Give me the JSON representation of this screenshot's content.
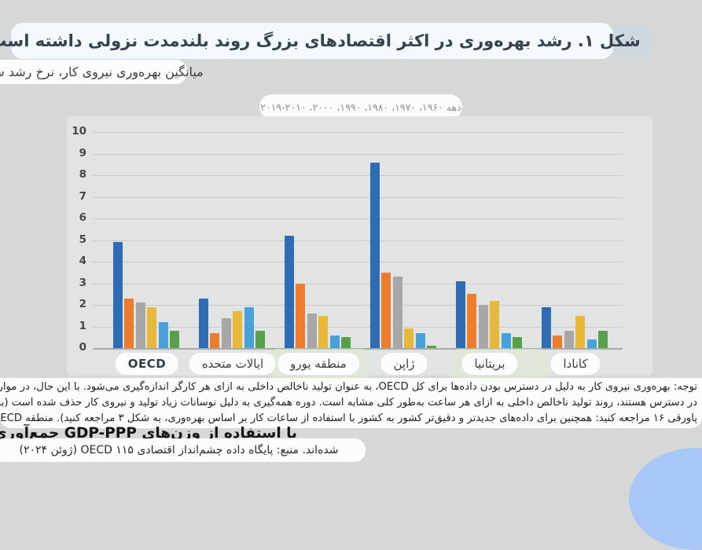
{
  "header": {
    "title": "شکل ۱. رشد بهره‌وری در اکثر اقتصادهای بزرگ روند بلندمدت نزولی داشته است.",
    "subtitle": "میانگین بهره‌وری نیروی کار، نرخ رشد سالانه"
  },
  "legend": {
    "text": "دهه ۱۹۶۰، ۱۹۷۰، ۱۹۸۰، ۱۹۹۰، ۲۰۰۰، ۲۰۱۰-۲۰۱۹"
  },
  "chart_data": {
    "type": "bar",
    "title": "میانگین بهره‌وری نیروی کار، نرخ رشد سالانه",
    "categories": [
      "OECD",
      "ایالات متحده",
      "منطقه یورو",
      "ژاپن",
      "بریتانیا",
      "کانادا"
    ],
    "series": [
      {
        "name": "دهه ۱۹۶۰",
        "color": "#2e6db4",
        "values": [
          4.9,
          2.3,
          5.2,
          8.6,
          3.1,
          1.9
        ]
      },
      {
        "name": "دهه ۱۹۷۰",
        "color": "#ec7d2d",
        "values": [
          2.3,
          0.7,
          3.0,
          3.5,
          2.5,
          0.6
        ]
      },
      {
        "name": "دهه ۱۹۸۰",
        "color": "#a7a7a7",
        "values": [
          2.1,
          1.4,
          1.6,
          3.3,
          2.0,
          0.8
        ]
      },
      {
        "name": "دهه ۱۹۹۰",
        "color": "#e8b83a",
        "values": [
          1.9,
          1.7,
          1.5,
          0.9,
          2.2,
          1.5
        ]
      },
      {
        "name": "دهه ۲۰۰۰",
        "color": "#46a2d9",
        "values": [
          1.2,
          1.9,
          0.6,
          0.7,
          0.7,
          0.4
        ]
      },
      {
        "name": "۲۰۱۰-۲۰۱۹",
        "color": "#57a14b",
        "values": [
          0.8,
          0.8,
          0.5,
          0.1,
          0.5,
          0.8
        ]
      }
    ],
    "ylim": [
      0,
      10
    ],
    "yticks": [
      0,
      1,
      2,
      3,
      4,
      5,
      6,
      7,
      8,
      9,
      10
    ],
    "grid": true,
    "legend_position": "top-center-text-pill"
  },
  "notes": {
    "line1": "توجه: بهره‌وری نیروی کار به دلیل در دسترس بودن داده‌ها برای کل OECD، به عنوان تولید ناخالص داخلی به ازای هر کارگر اندازه‌گیری می‌شود. با این حال، در مواردی که داده‌ها",
    "line2": "در دسترس هستند، روند تولید ناخالص داخلی به ازای هر ساعت به‌طور کلی مشابه است. دوره همه‌گیری به دلیل نوسانات زیاد تولید و نیروی کار حذف شده است (به زیر در",
    "line3": "پاورقی ۱۶ مراجعه کنید: همچنین برای داده‌های جدیدتر و دقیق‌تر کشور به کشور با استفاده از ساعات کار بر اساس بهره‌وری، به شکل ۳ مراجعه کنید). منطقه OECD و یورو",
    "line4_bold": "با استفاده از وزن‌های GDP-PPP جمع‌آوری",
    "line5_source": "شده‌اند. منبع: پایگاه داده چشم‌انداز اقتصادی ۱۱۵ OECD (ژوئن ۲۰۲۴)"
  },
  "colors": {
    "page_bg": "#d6d8d7",
    "chart_bg": "#e2e4e3",
    "gridline": "#c9ccca",
    "title_pill_bg": "#f3f9fc",
    "title_text": "#36434f",
    "decor_rect": "#cdd8df",
    "decor_ellipse": "#a8c7f6",
    "green_highlight": "#dde8d6"
  }
}
